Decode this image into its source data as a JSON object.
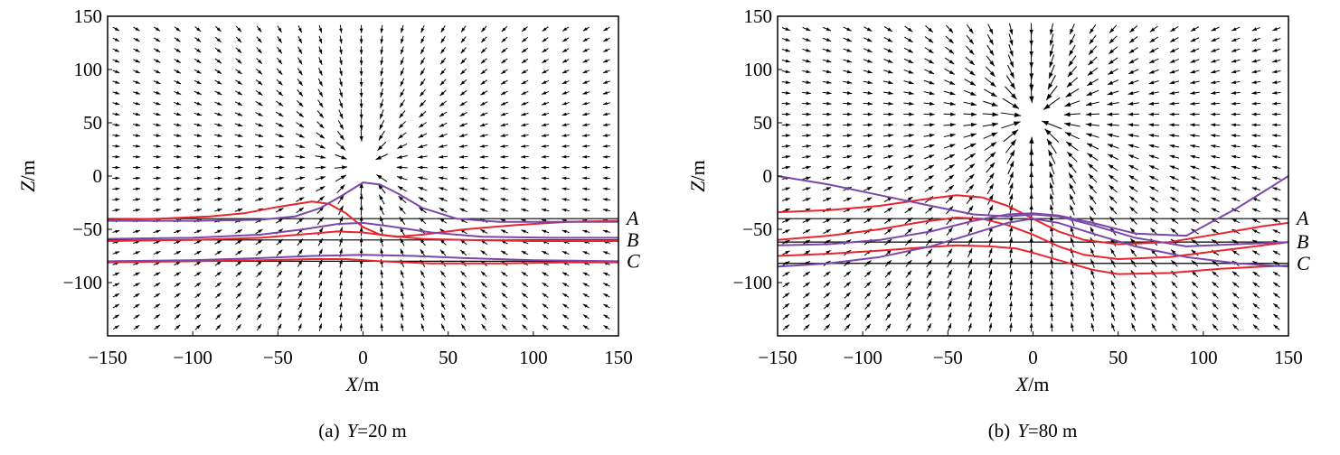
{
  "chart_data": [
    {
      "type": "quiver",
      "panel": "a",
      "caption_prefix": "(a)",
      "caption_var": "Y",
      "caption_value": "=20 m",
      "xlabel_var": "X",
      "xlabel_unit": "/m",
      "ylabel_var": "Z",
      "ylabel_unit": "/m",
      "xlim": [
        -150,
        150
      ],
      "ylim": [
        -150,
        150
      ],
      "xticks": [
        -150,
        -100,
        -50,
        0,
        50,
        100,
        150
      ],
      "yticks": [
        -100,
        -50,
        0,
        50,
        100,
        150
      ],
      "xtick_labels": [
        "−150",
        "−100",
        "−50",
        "0",
        "50",
        "100",
        "150"
      ],
      "ytick_labels": [
        "−100",
        "−50",
        "0",
        "50",
        "100",
        "150"
      ],
      "grid": false,
      "field_source": {
        "x": 0,
        "z": 10,
        "strength": 1.0
      },
      "reference_lines": [
        {
          "label": "A",
          "z": -40
        },
        {
          "label": "B",
          "z": -60
        },
        {
          "label": "C",
          "z": -80
        }
      ],
      "series": [
        {
          "color": "#e8242c",
          "points": [
            [
              -150,
              -41
            ],
            [
              -120,
              -40
            ],
            [
              -90,
              -38
            ],
            [
              -70,
              -35
            ],
            [
              -50,
              -29
            ],
            [
              -30,
              -24
            ],
            [
              -20,
              -26
            ],
            [
              -10,
              -35
            ],
            [
              0,
              -48
            ],
            [
              10,
              -55
            ],
            [
              20,
              -57
            ],
            [
              35,
              -55
            ],
            [
              60,
              -50
            ],
            [
              90,
              -46
            ],
            [
              120,
              -43
            ],
            [
              150,
              -42
            ]
          ]
        },
        {
          "color": "#e8242c",
          "points": [
            [
              -150,
              -61
            ],
            [
              -100,
              -60
            ],
            [
              -60,
              -58
            ],
            [
              -30,
              -54
            ],
            [
              -15,
              -52
            ],
            [
              0,
              -53
            ],
            [
              15,
              -56
            ],
            [
              35,
              -59
            ],
            [
              60,
              -60
            ],
            [
              100,
              -61
            ],
            [
              150,
              -61
            ]
          ]
        },
        {
          "color": "#e8242c",
          "points": [
            [
              -150,
              -81
            ],
            [
              -100,
              -80
            ],
            [
              -60,
              -79
            ],
            [
              -30,
              -78
            ],
            [
              -10,
              -78
            ],
            [
              10,
              -80
            ],
            [
              40,
              -82
            ],
            [
              80,
              -82
            ],
            [
              120,
              -81
            ],
            [
              150,
              -81
            ]
          ]
        },
        {
          "color": "#7b47a8",
          "points": [
            [
              -150,
              -42
            ],
            [
              -100,
              -42
            ],
            [
              -60,
              -41
            ],
            [
              -40,
              -38
            ],
            [
              -25,
              -30
            ],
            [
              -12,
              -18
            ],
            [
              0,
              -6
            ],
            [
              10,
              -8
            ],
            [
              20,
              -16
            ],
            [
              35,
              -30
            ],
            [
              55,
              -40
            ],
            [
              80,
              -43
            ],
            [
              120,
              -43
            ],
            [
              150,
              -43
            ]
          ]
        },
        {
          "color": "#7b47a8",
          "points": [
            [
              -150,
              -59
            ],
            [
              -100,
              -58
            ],
            [
              -60,
              -55
            ],
            [
              -35,
              -50
            ],
            [
              -15,
              -45
            ],
            [
              0,
              -44
            ],
            [
              15,
              -47
            ],
            [
              40,
              -53
            ],
            [
              70,
              -57
            ],
            [
              110,
              -58
            ],
            [
              150,
              -58
            ]
          ]
        },
        {
          "color": "#7b47a8",
          "points": [
            [
              -150,
              -80
            ],
            [
              -100,
              -79
            ],
            [
              -60,
              -77
            ],
            [
              -30,
              -75
            ],
            [
              0,
              -74
            ],
            [
              30,
              -75
            ],
            [
              60,
              -77
            ],
            [
              100,
              -79
            ],
            [
              150,
              -80
            ]
          ]
        }
      ]
    },
    {
      "type": "quiver",
      "panel": "b",
      "caption_prefix": "(b)",
      "caption_var": "Y",
      "caption_value": "=80 m",
      "xlabel_var": "X",
      "xlabel_unit": "/m",
      "ylabel_var": "Z",
      "ylabel_unit": "/m",
      "xlim": [
        -150,
        150
      ],
      "ylim": [
        -150,
        150
      ],
      "xticks": [
        -150,
        -100,
        -50,
        0,
        50,
        100,
        150
      ],
      "yticks": [
        -100,
        -50,
        0,
        50,
        100,
        150
      ],
      "xtick_labels": [
        "−150",
        "−100",
        "−50",
        "0",
        "50",
        "100",
        "150"
      ],
      "ytick_labels": [
        "−100",
        "−50",
        "0",
        "50",
        "100",
        "150"
      ],
      "grid": false,
      "field_source": {
        "x": 0,
        "z": 55,
        "strength": 2.2
      },
      "reference_lines": [
        {
          "label": "A",
          "z": -40
        },
        {
          "label": "B",
          "z": -62
        },
        {
          "label": "C",
          "z": -82
        }
      ],
      "series": [
        {
          "color": "#e8242c",
          "points": [
            [
              -150,
              -34
            ],
            [
              -120,
              -32
            ],
            [
              -90,
              -28
            ],
            [
              -65,
              -22
            ],
            [
              -45,
              -18
            ],
            [
              -30,
              -20
            ],
            [
              -15,
              -28
            ],
            [
              0,
              -40
            ],
            [
              15,
              -52
            ],
            [
              30,
              -60
            ],
            [
              50,
              -64
            ],
            [
              80,
              -62
            ],
            [
              110,
              -54
            ],
            [
              135,
              -47
            ],
            [
              150,
              -44
            ]
          ]
        },
        {
          "color": "#e8242c",
          "points": [
            [
              -150,
              -60
            ],
            [
              -120,
              -56
            ],
            [
              -90,
              -50
            ],
            [
              -65,
              -43
            ],
            [
              -45,
              -39
            ],
            [
              -30,
              -40
            ],
            [
              -15,
              -46
            ],
            [
              0,
              -55
            ],
            [
              15,
              -66
            ],
            [
              30,
              -74
            ],
            [
              50,
              -78
            ],
            [
              80,
              -76
            ],
            [
              110,
              -70
            ],
            [
              135,
              -65
            ],
            [
              150,
              -62
            ]
          ]
        },
        {
          "color": "#e8242c",
          "points": [
            [
              -150,
              -75
            ],
            [
              -120,
              -73
            ],
            [
              -90,
              -70
            ],
            [
              -65,
              -67
            ],
            [
              -45,
              -65
            ],
            [
              -25,
              -66
            ],
            [
              -10,
              -68
            ],
            [
              0,
              -72
            ],
            [
              15,
              -79
            ],
            [
              35,
              -88
            ],
            [
              50,
              -92
            ],
            [
              80,
              -91
            ],
            [
              110,
              -87
            ],
            [
              135,
              -85
            ],
            [
              150,
              -84
            ]
          ]
        },
        {
          "color": "#7b47a8",
          "points": [
            [
              -150,
              0
            ],
            [
              -120,
              -8
            ],
            [
              -90,
              -18
            ],
            [
              -60,
              -28
            ],
            [
              -35,
              -36
            ],
            [
              -15,
              -38
            ],
            [
              0,
              -36
            ],
            [
              15,
              -38
            ],
            [
              35,
              -46
            ],
            [
              60,
              -58
            ],
            [
              90,
              -66
            ],
            [
              120,
              -64
            ],
            [
              150,
              -62
            ]
          ]
        },
        {
          "color": "#7b47a8",
          "points": [
            [
              -150,
              -65
            ],
            [
              -120,
              -64
            ],
            [
              -90,
              -60
            ],
            [
              -60,
              -52
            ],
            [
              -35,
              -42
            ],
            [
              -15,
              -36
            ],
            [
              0,
              -35
            ],
            [
              15,
              -37
            ],
            [
              35,
              -44
            ],
            [
              60,
              -54
            ],
            [
              90,
              -56
            ],
            [
              120,
              -30
            ],
            [
              150,
              0
            ]
          ]
        },
        {
          "color": "#7b47a8",
          "points": [
            [
              -150,
              -85
            ],
            [
              -120,
              -82
            ],
            [
              -90,
              -76
            ],
            [
              -60,
              -66
            ],
            [
              -35,
              -54
            ],
            [
              -15,
              -44
            ],
            [
              0,
              -40
            ],
            [
              15,
              -44
            ],
            [
              35,
              -54
            ],
            [
              60,
              -66
            ],
            [
              90,
              -76
            ],
            [
              120,
              -82
            ],
            [
              150,
              -85
            ]
          ]
        }
      ]
    }
  ]
}
